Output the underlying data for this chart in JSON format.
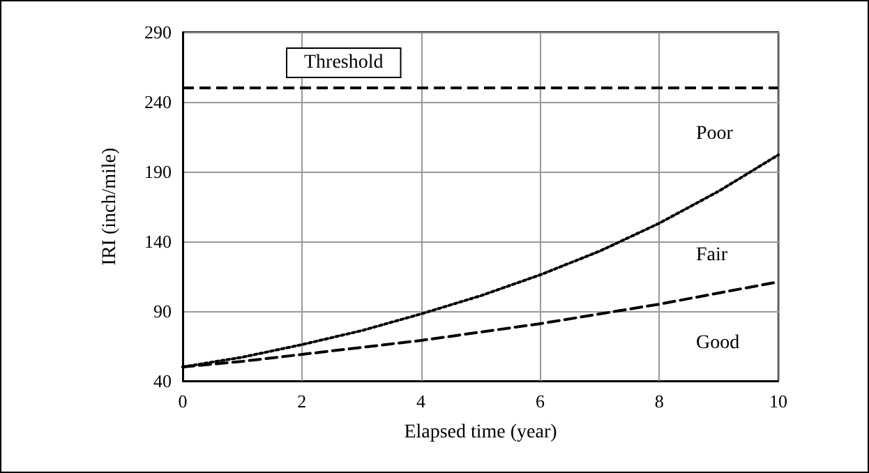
{
  "chart_data": {
    "type": "line",
    "xlabel": "Elapsed time (year)",
    "ylabel": "IRI (inch/mile)",
    "x": [
      0,
      1,
      2,
      3,
      4,
      5,
      6,
      7,
      8,
      9,
      10
    ],
    "series": [
      {
        "color": "#000000",
        "line_style": "dotted",
        "values": [
          50,
          57,
          66,
          76,
          88,
          101,
          116,
          133,
          153,
          176,
          202
        ]
      },
      {
        "color": "#000000",
        "line_style": "dashed",
        "values": [
          50,
          54,
          59,
          64,
          69,
          75,
          81,
          88,
          95,
          103,
          111
        ]
      }
    ],
    "xlim": [
      0,
      10
    ],
    "xticks": [
      0,
      2,
      4,
      6,
      8,
      10
    ],
    "ylim": [
      40,
      290
    ],
    "yticks": [
      40,
      90,
      140,
      190,
      240,
      290
    ],
    "grid": true,
    "marker": "none",
    "ref_lines": [
      {
        "axis": "y",
        "value": 250,
        "label": "Threshold",
        "color": "#000000",
        "line_style": "dashed"
      }
    ],
    "annotations": [
      "Poor",
      "Fair",
      "Good"
    ]
  }
}
